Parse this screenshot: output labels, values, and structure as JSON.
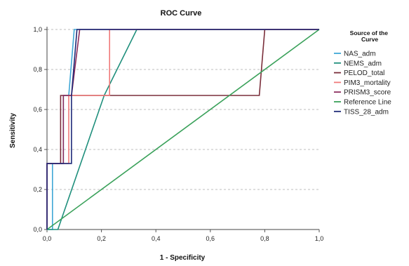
{
  "chart_data": {
    "type": "line",
    "title": "ROC Curve",
    "xlabel": "1 - Specificity",
    "ylabel": "Sensitivity",
    "xlim": [
      0,
      1
    ],
    "ylim": [
      0,
      1
    ],
    "x_ticks": [
      "0,0",
      "0,2",
      "0,4",
      "0,6",
      "0,8",
      "1,0"
    ],
    "y_ticks": [
      "0,0",
      "0,2",
      "0,4",
      "0,6",
      "0,8",
      "1,0"
    ],
    "grid": "horizontal dashed",
    "legend": {
      "title": "Source of the Curve",
      "placement": "right"
    },
    "series": [
      {
        "name": "NAS_adm",
        "color": "#3fa7d6",
        "points": [
          [
            0,
            0
          ],
          [
            0.02,
            0
          ],
          [
            0.02,
            0.33
          ],
          [
            0.06,
            0.33
          ],
          [
            0.06,
            0.67
          ],
          [
            0.08,
            0.67
          ],
          [
            0.1,
            1
          ],
          [
            1,
            1
          ]
        ]
      },
      {
        "name": "NEMS_adm",
        "color": "#1f8f7c",
        "points": [
          [
            0,
            0
          ],
          [
            0.04,
            0
          ],
          [
            0.21,
            0.67
          ],
          [
            0.33,
            1
          ],
          [
            1,
            1
          ]
        ]
      },
      {
        "name": "PELOD_total",
        "color": "#7a2e3a",
        "points": [
          [
            0,
            0
          ],
          [
            0,
            0.33
          ],
          [
            0.05,
            0.33
          ],
          [
            0.05,
            0.67
          ],
          [
            0.78,
            0.67
          ],
          [
            0.8,
            1
          ],
          [
            1,
            1
          ]
        ]
      },
      {
        "name": "PIM3_mortality",
        "color": "#f07a7a",
        "points": [
          [
            0,
            0
          ],
          [
            0,
            0.33
          ],
          [
            0.08,
            0.33
          ],
          [
            0.08,
            0.67
          ],
          [
            0.23,
            0.67
          ],
          [
            0.23,
            1
          ],
          [
            1,
            1
          ]
        ]
      },
      {
        "name": "PRISM3_score",
        "color": "#8a2b5c",
        "points": [
          [
            0,
            0
          ],
          [
            0,
            0.33
          ],
          [
            0.06,
            0.33
          ],
          [
            0.06,
            0.67
          ],
          [
            0.09,
            0.67
          ],
          [
            0.12,
            1
          ],
          [
            1,
            1
          ]
        ]
      },
      {
        "name": "Reference Line",
        "color": "#3aa15a",
        "points": [
          [
            0,
            0
          ],
          [
            1,
            1
          ]
        ]
      },
      {
        "name": "TISS_28_adm",
        "color": "#1e2a78",
        "points": [
          [
            0,
            0
          ],
          [
            0,
            0.33
          ],
          [
            0.09,
            0.33
          ],
          [
            0.09,
            0.67
          ],
          [
            0.11,
            1
          ],
          [
            1,
            1
          ]
        ]
      }
    ]
  }
}
